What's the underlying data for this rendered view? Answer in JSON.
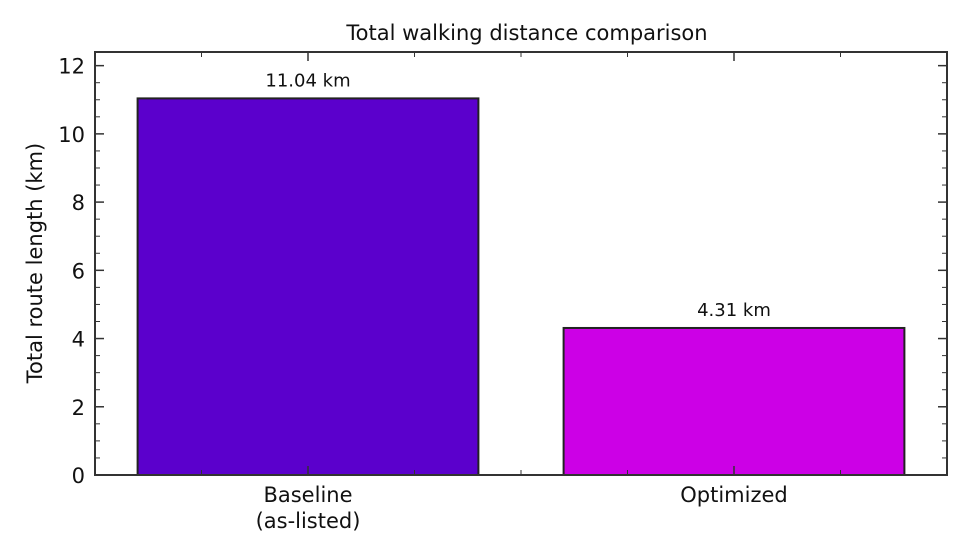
{
  "chart_data": {
    "type": "bar",
    "title": "Total walking distance comparison",
    "xlabel": "",
    "ylabel": "Total route length (km)",
    "categories": [
      "Baseline\n(as-listed)",
      "Optimized"
    ],
    "category_lines": [
      [
        "Baseline",
        "(as-listed)"
      ],
      [
        "Optimized"
      ]
    ],
    "values": [
      11.04,
      4.31
    ],
    "value_labels": [
      "11.04 km",
      "4.31 km"
    ],
    "colors": [
      "#5b00cc",
      "#cc00e6"
    ],
    "edge_color": "#222222",
    "ylim": [
      0,
      12.4
    ],
    "yticks": [
      0,
      2,
      4,
      6,
      8,
      10,
      12
    ],
    "yminor_step": 0.5,
    "grid": false,
    "legend": null,
    "ticks_direction": "in",
    "mirror_ticks": true
  }
}
